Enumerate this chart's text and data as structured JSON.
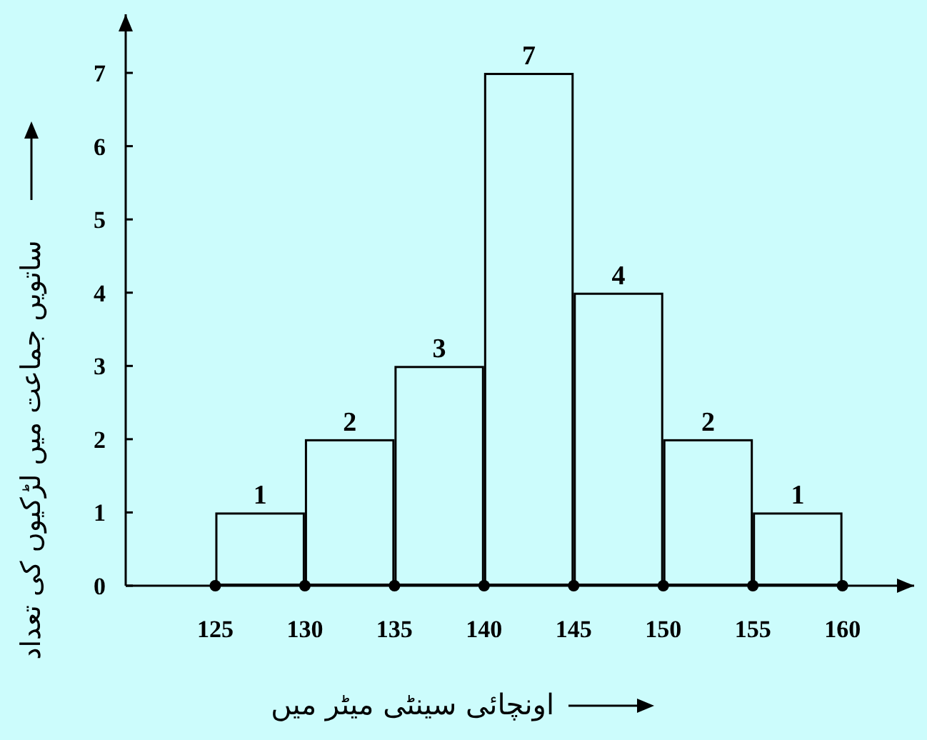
{
  "chart_data": {
    "type": "histogram",
    "xlabel": "اونچائی سینٹی میٹر میں",
    "ylabel": "ساتویں جماعت میں لڑکیوں کی تعداد",
    "bins": [
      125,
      130,
      135,
      140,
      145,
      150,
      155,
      160
    ],
    "values": [
      1,
      2,
      3,
      7,
      4,
      2,
      1
    ],
    "color": "#000000",
    "xlim": [
      120,
      164
    ],
    "ylim": [
      0,
      7.8
    ],
    "xticks": [
      125,
      130,
      135,
      140,
      145,
      150,
      155,
      160
    ],
    "yticks": [
      0,
      1,
      2,
      3,
      4,
      5,
      6,
      7
    ],
    "data_labels": true,
    "grid": false
  }
}
